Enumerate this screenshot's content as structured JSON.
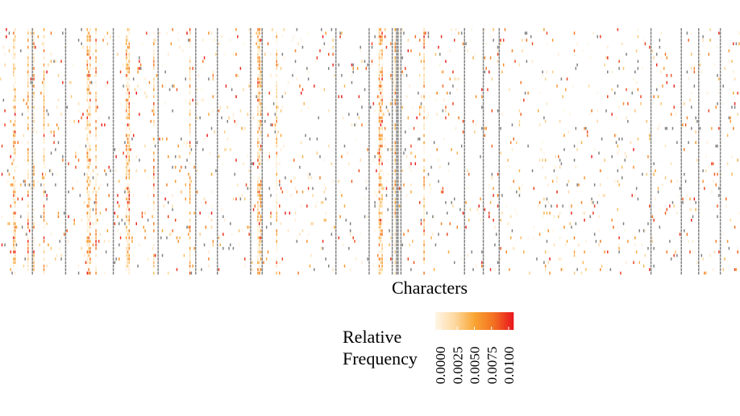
{
  "chart_data": {
    "type": "heatmap",
    "xlabel": "Characters",
    "ylabel": "",
    "grid": false,
    "missing_color": "#7f7f7f",
    "color_scale": {
      "title_lines": [
        "Relative",
        "Frequency"
      ],
      "min": 0.0,
      "max": 0.01,
      "colors": [
        "#fff5e6",
        "#fdd9a0",
        "#f9a533",
        "#f37021",
        "#e8141e"
      ],
      "ticks": [
        "0.0000",
        "0.0025",
        "0.0050",
        "0.0075",
        "0.0100"
      ]
    },
    "gap_columns": [
      22,
      45,
      78,
      109,
      135,
      150,
      173,
      181,
      232,
      255,
      271,
      274,
      275,
      277,
      321,
      334,
      345,
      450,
      471,
      483,
      498
    ],
    "warm_columns": [
      9,
      10,
      19,
      22,
      23,
      30,
      60,
      61,
      62,
      66,
      87,
      88,
      89,
      106,
      131,
      178,
      179,
      180,
      191,
      262,
      263,
      264,
      273,
      293
    ],
    "rows": 70,
    "cols": 512,
    "seed": 7
  }
}
